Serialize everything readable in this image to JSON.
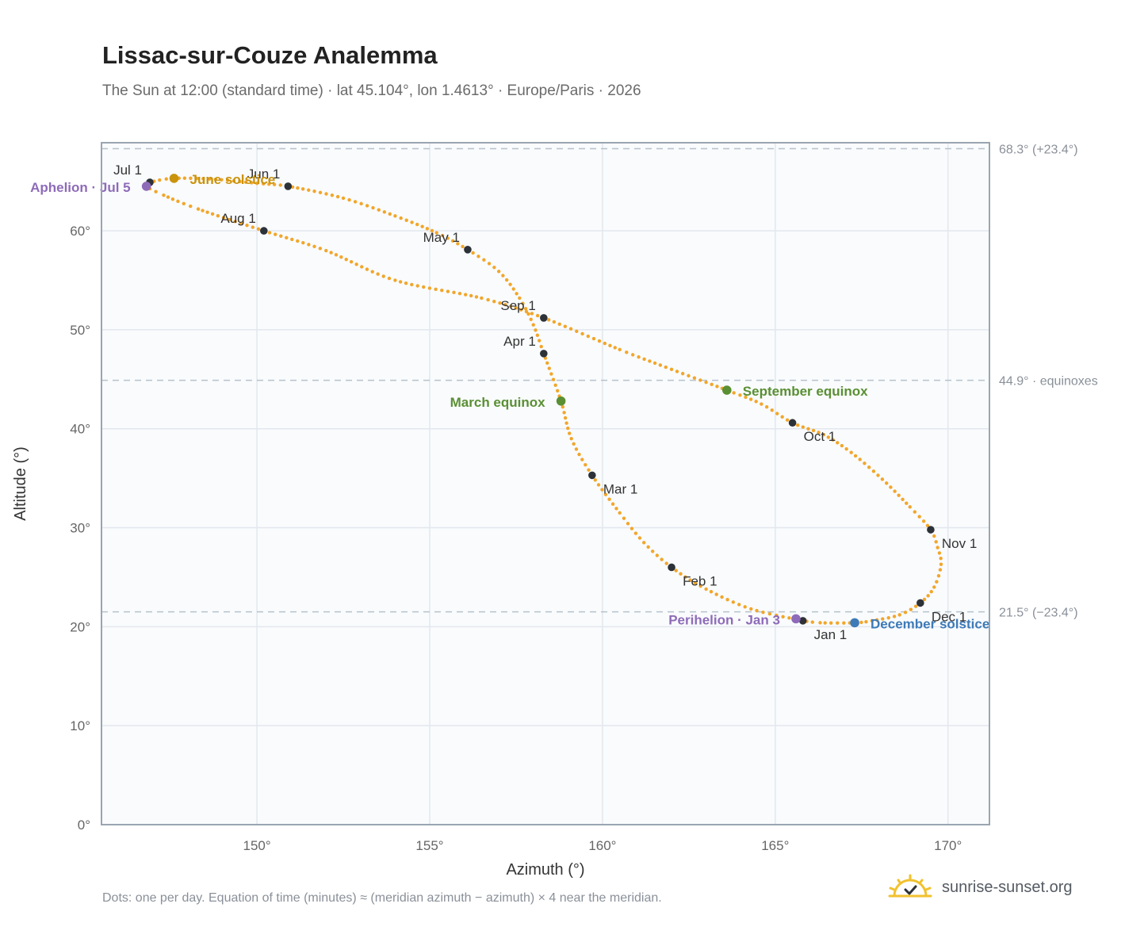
{
  "title": "Lissac-sur-Couze Analemma",
  "subtitle": "The Sun at 12:00 (standard time) · lat 45.104°, lon 1.4613° · Europe/Paris · 2026",
  "footnote": "Dots: one per day. Equation of time (minutes) ≈ (meridian azimuth − azimuth) × 4 near the meridian.",
  "brand": {
    "name": "sunrise-sunset.org",
    "icon": "sun-logo-icon",
    "color": "#f2c12e"
  },
  "chart_data": {
    "type": "scatter",
    "xlabel": "Azimuth (°)",
    "ylabel": "Altitude (°)",
    "xlim": [
      145.5,
      171.2
    ],
    "ylim": [
      0,
      68.9
    ],
    "xticks": [
      150,
      155,
      160,
      165,
      170
    ],
    "yticks": [
      0,
      10,
      20,
      30,
      40,
      50,
      60
    ],
    "x_tick_suffix": "°",
    "y_tick_suffix": "°",
    "grid": true,
    "colors": {
      "path": "#f2a62a",
      "month": "#2d3138",
      "plot_bg": "#f9fbfd",
      "grid": "#e3e8ee",
      "frame": "#9aa5b1",
      "ref_line": "#b8c2cc"
    },
    "reference_lines": [
      {
        "y": 68.3,
        "label": "68.3° (+23.4°)"
      },
      {
        "y": 44.9,
        "label": "44.9° · equinoxes"
      },
      {
        "y": 21.5,
        "label": "21.5° (−23.4°)"
      }
    ],
    "month_markers": [
      {
        "label": "Jan 1",
        "x": 165.8,
        "y": 20.6,
        "pos": "below-right"
      },
      {
        "label": "Feb 1",
        "x": 162.0,
        "y": 26.0,
        "pos": "below-right"
      },
      {
        "label": "Mar 1",
        "x": 159.7,
        "y": 35.3,
        "pos": "below-right"
      },
      {
        "label": "Apr 1",
        "x": 158.3,
        "y": 47.6,
        "pos": "above-left"
      },
      {
        "label": "May 1",
        "x": 156.1,
        "y": 58.1,
        "pos": "above-left"
      },
      {
        "label": "Jun 1",
        "x": 150.9,
        "y": 64.5,
        "pos": "above-left"
      },
      {
        "label": "Jul 1",
        "x": 146.9,
        "y": 64.9,
        "pos": "above-left"
      },
      {
        "label": "Aug 1",
        "x": 150.2,
        "y": 60.0,
        "pos": "above-left"
      },
      {
        "label": "Sep 1",
        "x": 158.3,
        "y": 51.2,
        "pos": "above-left"
      },
      {
        "label": "Oct 1",
        "x": 165.5,
        "y": 40.6,
        "pos": "below-right"
      },
      {
        "label": "Nov 1",
        "x": 169.5,
        "y": 29.8,
        "pos": "below-right"
      },
      {
        "label": "Dec 1",
        "x": 169.2,
        "y": 22.4,
        "pos": "below-right"
      }
    ],
    "events": [
      {
        "label": "June solstice",
        "x": 147.6,
        "y": 65.3,
        "color": "#c9930e",
        "side": "right"
      },
      {
        "label": "Aphelion · Jul 5",
        "x": 146.8,
        "y": 64.5,
        "color": "#8e6bb8",
        "side": "left"
      },
      {
        "label": "March equinox",
        "x": 158.8,
        "y": 42.8,
        "color": "#5a8f33",
        "side": "left"
      },
      {
        "label": "September equinox",
        "x": 163.6,
        "y": 43.9,
        "color": "#5a8f33",
        "side": "right"
      },
      {
        "label": "Perihelion · Jan 3",
        "x": 165.6,
        "y": 20.8,
        "color": "#8e6bb8",
        "side": "left"
      },
      {
        "label": "December solstice",
        "x": 167.3,
        "y": 20.4,
        "color": "#3d7ab8",
        "side": "right"
      }
    ],
    "path_points": [
      [
        165.8,
        20.6
      ],
      [
        166.3,
        20.4
      ],
      [
        167.3,
        20.4
      ],
      [
        167.8,
        20.6
      ],
      [
        168.6,
        21.2
      ],
      [
        169.2,
        22.4
      ],
      [
        169.6,
        24.0
      ],
      [
        169.8,
        26.3
      ],
      [
        169.7,
        28.0
      ],
      [
        169.5,
        29.8
      ],
      [
        168.9,
        32.1
      ],
      [
        168.1,
        34.9
      ],
      [
        167.2,
        37.6
      ],
      [
        166.4,
        39.4
      ],
      [
        165.5,
        40.6
      ],
      [
        164.6,
        42.5
      ],
      [
        163.6,
        43.9
      ],
      [
        162.0,
        46.0
      ],
      [
        160.5,
        48.0
      ],
      [
        158.3,
        51.2
      ],
      [
        156.5,
        53.2
      ],
      [
        154.0,
        55.0
      ],
      [
        152.0,
        58.0
      ],
      [
        150.2,
        60.0
      ],
      [
        148.3,
        62.2
      ],
      [
        147.3,
        63.6
      ],
      [
        146.8,
        64.5
      ],
      [
        146.9,
        64.9
      ],
      [
        147.6,
        65.3
      ],
      [
        148.8,
        65.2
      ],
      [
        150.0,
        64.8
      ],
      [
        150.9,
        64.5
      ],
      [
        152.5,
        63.3
      ],
      [
        154.0,
        61.5
      ],
      [
        155.2,
        59.8
      ],
      [
        156.1,
        58.1
      ],
      [
        157.0,
        55.9
      ],
      [
        157.6,
        53.2
      ],
      [
        158.0,
        50.5
      ],
      [
        158.3,
        47.6
      ],
      [
        158.8,
        42.8
      ],
      [
        159.1,
        39.0
      ],
      [
        159.7,
        35.3
      ],
      [
        160.5,
        31.5
      ],
      [
        161.2,
        28.5
      ],
      [
        162.0,
        26.0
      ],
      [
        163.0,
        23.8
      ],
      [
        164.3,
        21.8
      ],
      [
        165.8,
        20.6
      ]
    ]
  }
}
